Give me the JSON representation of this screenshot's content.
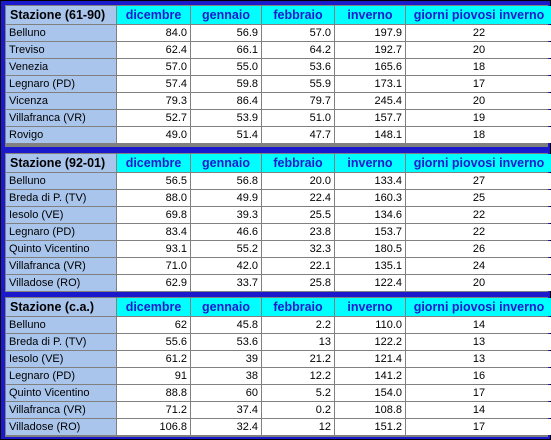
{
  "columns": [
    "dicembre",
    "gennaio",
    "febbraio",
    "inverno",
    "giorni piovosi inverno"
  ],
  "sections": [
    {
      "title": "Stazione (61-90)",
      "rows": [
        [
          "Belluno",
          "84.0",
          "56.9",
          "57.0",
          "197.9",
          "22"
        ],
        [
          "Treviso",
          "62.4",
          "66.1",
          "64.2",
          "192.7",
          "20"
        ],
        [
          "Venezia",
          "57.0",
          "55.0",
          "53.6",
          "165.6",
          "18"
        ],
        [
          "Legnaro (PD)",
          "57.4",
          "59.8",
          "55.9",
          "173.1",
          "17"
        ],
        [
          "Vicenza",
          "79.3",
          "86.4",
          "79.7",
          "245.4",
          "20"
        ],
        [
          "Villafranca (VR)",
          "52.7",
          "53.9",
          "51.0",
          "157.7",
          "19"
        ],
        [
          "Rovigo",
          "49.0",
          "51.4",
          "47.7",
          "148.1",
          "18"
        ]
      ]
    },
    {
      "title": "Stazione (92-01)",
      "rows": [
        [
          "Belluno",
          "56.5",
          "56.8",
          "20.0",
          "133.4",
          "27"
        ],
        [
          "Breda di P. (TV)",
          "88.0",
          "49.9",
          "22.4",
          "160.3",
          "25"
        ],
        [
          "Iesolo (VE)",
          "69.8",
          "39.3",
          "25.5",
          "134.6",
          "22"
        ],
        [
          "Legnaro (PD)",
          "83.4",
          "46.6",
          "23.8",
          "153.7",
          "22"
        ],
        [
          "Quinto Vicentino",
          "93.1",
          "55.2",
          "32.3",
          "180.5",
          "26"
        ],
        [
          "Villafranca (VR)",
          "71.0",
          "42.0",
          "22.1",
          "135.1",
          "24"
        ],
        [
          "Villadose (RO)",
          "62.9",
          "33.7",
          "25.8",
          "122.4",
          "20"
        ]
      ]
    },
    {
      "title": "Stazione (c.a.)",
      "rows": [
        [
          "Belluno",
          "62",
          "45.8",
          "2.2",
          "110.0",
          "14"
        ],
        [
          "Breda di P. (TV)",
          "55.6",
          "53.6",
          "13",
          "122.2",
          "13"
        ],
        [
          "Iesolo (VE)",
          "61.2",
          "39",
          "21.2",
          "121.4",
          "13"
        ],
        [
          "Legnaro (PD)",
          "91",
          "38",
          "12.2",
          "141.2",
          "16"
        ],
        [
          "Quinto Vicentino",
          "88.8",
          "60",
          "5.2",
          "154.0",
          "17"
        ],
        [
          "Villafranca (VR)",
          "71.2",
          "37.4",
          "0.2",
          "108.8",
          "14"
        ],
        [
          "Villadose (RO)",
          "106.8",
          "32.4",
          "12",
          "151.2",
          "17"
        ]
      ]
    }
  ]
}
